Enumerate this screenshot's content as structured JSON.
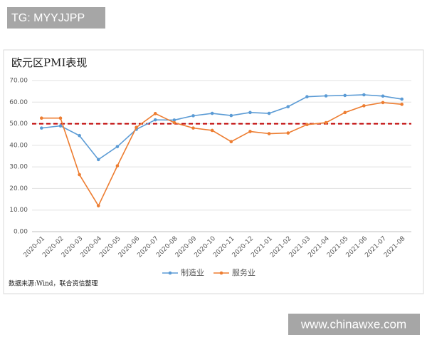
{
  "watermarks": {
    "top": "TG: MYYJJPP",
    "bottom": "www.chinawxe.com"
  },
  "chart_data": {
    "type": "line",
    "title": "欧元区PMI表现",
    "categories": [
      "2020-01",
      "2020-02",
      "2020-03",
      "2020-04",
      "2020-05",
      "2020-06",
      "2020-07",
      "2020-08",
      "2020-09",
      "2020-10",
      "2020-11",
      "2020-12",
      "2021-01",
      "2021-02",
      "2021-03",
      "2021-04",
      "2021-05",
      "2021-06",
      "2021-07",
      "2021-08"
    ],
    "series": [
      {
        "name": "制造业",
        "color": "#5b9bd5",
        "values": [
          48.0,
          49.0,
          44.5,
          33.4,
          39.4,
          47.4,
          51.8,
          51.7,
          53.7,
          54.8,
          53.8,
          55.2,
          54.8,
          57.9,
          62.5,
          62.9,
          63.1,
          63.4,
          62.8,
          61.4
        ]
      },
      {
        "name": "服务业",
        "color": "#ed7d31",
        "values": [
          52.6,
          52.6,
          26.4,
          12.0,
          30.5,
          48.3,
          54.7,
          50.5,
          48.0,
          46.9,
          41.7,
          46.4,
          45.4,
          45.7,
          49.6,
          50.5,
          55.2,
          58.3,
          59.8,
          59.0
        ]
      }
    ],
    "reference_line": {
      "value": 50,
      "color": "#c00000"
    },
    "ylim": [
      0,
      70
    ],
    "yticks": [
      {
        "value": 0,
        "label": "0.00"
      },
      {
        "value": 10,
        "label": "10.00"
      },
      {
        "value": 20,
        "label": "20.00"
      },
      {
        "value": 30,
        "label": "30.00"
      },
      {
        "value": 40,
        "label": "40.00"
      },
      {
        "value": 50,
        "label": "50.00"
      },
      {
        "value": 60,
        "label": "60.00"
      },
      {
        "value": 70,
        "label": "70.00"
      }
    ],
    "grid": true,
    "source": "数据来源:Wind，联合资信整理"
  }
}
